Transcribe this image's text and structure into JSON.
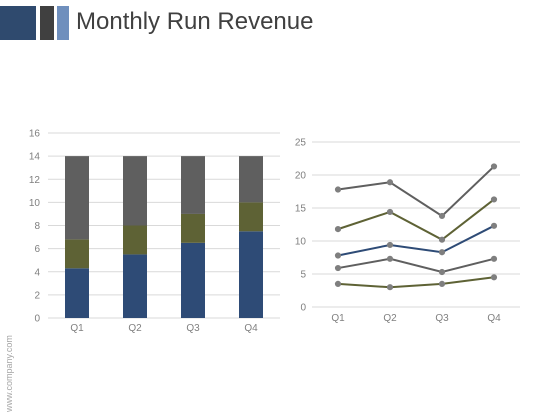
{
  "header": {
    "title": "Monthly Run Revenue",
    "bar_colors": [
      "#2f4a6e",
      "#404040",
      "#6f8fbd"
    ]
  },
  "footer": {
    "side_text": "www.company.com"
  },
  "colors": {
    "navy": "#2e4b76",
    "olive": "#5e6235",
    "gray": "#5f5f5f",
    "grid": "#d9d9d9",
    "marker": "#7f7f7f"
  },
  "chart_data": [
    {
      "type": "bar",
      "stacked": true,
      "categories": [
        "Q1",
        "Q2",
        "Q3",
        "Q4"
      ],
      "series": [
        {
          "values": [
            4.3,
            5.5,
            6.5,
            7.5
          ],
          "color": "#2e4b76"
        },
        {
          "values": [
            2.5,
            2.5,
            2.5,
            2.5
          ],
          "color": "#5e6235"
        },
        {
          "values": [
            7.2,
            6.0,
            5.0,
            4.0
          ],
          "color": "#5f5f5f"
        }
      ],
      "ylim": [
        0,
        16
      ],
      "yticks": [
        0,
        2,
        4,
        6,
        8,
        10,
        12,
        14,
        16
      ],
      "grid": true,
      "title": "",
      "xlabel": "",
      "ylabel": ""
    },
    {
      "type": "line",
      "categories": [
        "Q1",
        "Q2",
        "Q3",
        "Q4"
      ],
      "series": [
        {
          "values": [
            17.8,
            18.9,
            13.8,
            21.3
          ],
          "color": "#5f5f5f"
        },
        {
          "values": [
            11.8,
            14.4,
            10.2,
            16.3
          ],
          "color": "#5e6235"
        },
        {
          "values": [
            7.8,
            9.4,
            8.3,
            12.3
          ],
          "color": "#2e4b76"
        },
        {
          "values": [
            5.9,
            7.3,
            5.3,
            7.3
          ],
          "color": "#5f5f5f"
        },
        {
          "values": [
            3.5,
            3.0,
            3.5,
            4.5
          ],
          "color": "#5e6235"
        }
      ],
      "ylim": [
        0,
        25
      ],
      "yticks": [
        0,
        5,
        10,
        15,
        20,
        25
      ],
      "grid": true,
      "title": "",
      "xlabel": "",
      "ylabel": ""
    }
  ]
}
